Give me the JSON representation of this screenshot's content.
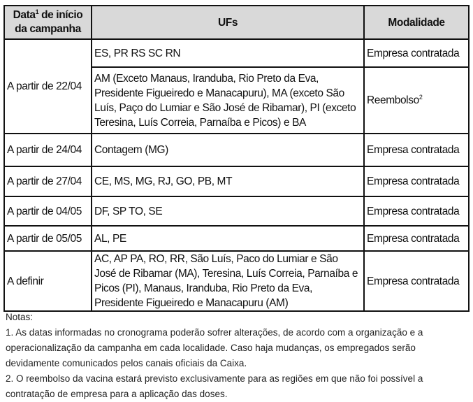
{
  "table": {
    "headers": {
      "date_pre": "Data",
      "date_sup": "1",
      "date_post": " de início da campanha",
      "ufs": "UFs",
      "modalidade": "Modalidade"
    },
    "rows": [
      {
        "date": "A partir de 22/04",
        "ufs": "ES, PR RS SC RN",
        "modalidade": "Empresa contratada",
        "modalidade_sup": ""
      },
      {
        "date": "",
        "ufs": "AM (Exceto Manaus, Iranduba, Rio Preto da Eva, Presidente Figueiredo e Manacapuru), MA (exceto São Luís, Paço do Lumiar e São José de Ribamar), PI (exceto Teresina, Luís Correia, Parnaíba e Picos) e BA",
        "modalidade": "Reembolso",
        "modalidade_sup": "2"
      },
      {
        "date": "A partir de 24/04",
        "ufs": "Contagem (MG)",
        "modalidade": "Empresa contratada"
      },
      {
        "date": "A partir de 27/04",
        "ufs": "CE, MS, MG, RJ, GO, PB, MT",
        "modalidade": "Empresa contratada"
      },
      {
        "date": "A partir de 04/05",
        "ufs": "DF, SP TO, SE",
        "modalidade": "Empresa contratada"
      },
      {
        "date": "A partir de 05/05",
        "ufs": "AL, PE",
        "modalidade": "Empresa contratada"
      },
      {
        "date": "A definir",
        "ufs": "AC, AP PA, RO, RR, São Luís, Paco do Lumiar e São José de Ribamar (MA), Teresina, Luís Correia, Parnaíba e Picos (PI), Manaus, Iranduba, Rio Preto da Eva, Presidente Figueiredo e Manacapuru (AM)",
        "modalidade": "Empresa contratada"
      }
    ]
  },
  "notes": {
    "title": "Notas:",
    "items": [
      "1. As datas informadas no cronograma poderão sofrer alterações, de acordo com a organização e a operacionalização da campanha em cada localidade. Caso haja mudanças, os empregados serão devidamente comunicados pelos canais oficiais da Caixa.",
      "2. O reembolso da vacina estará previsto exclusivamente para as regiões em que não foi possível a contratação de empresa para a aplicação das doses."
    ]
  },
  "colors": {
    "header_bg": "#d9d9d9",
    "border": "#111111"
  }
}
